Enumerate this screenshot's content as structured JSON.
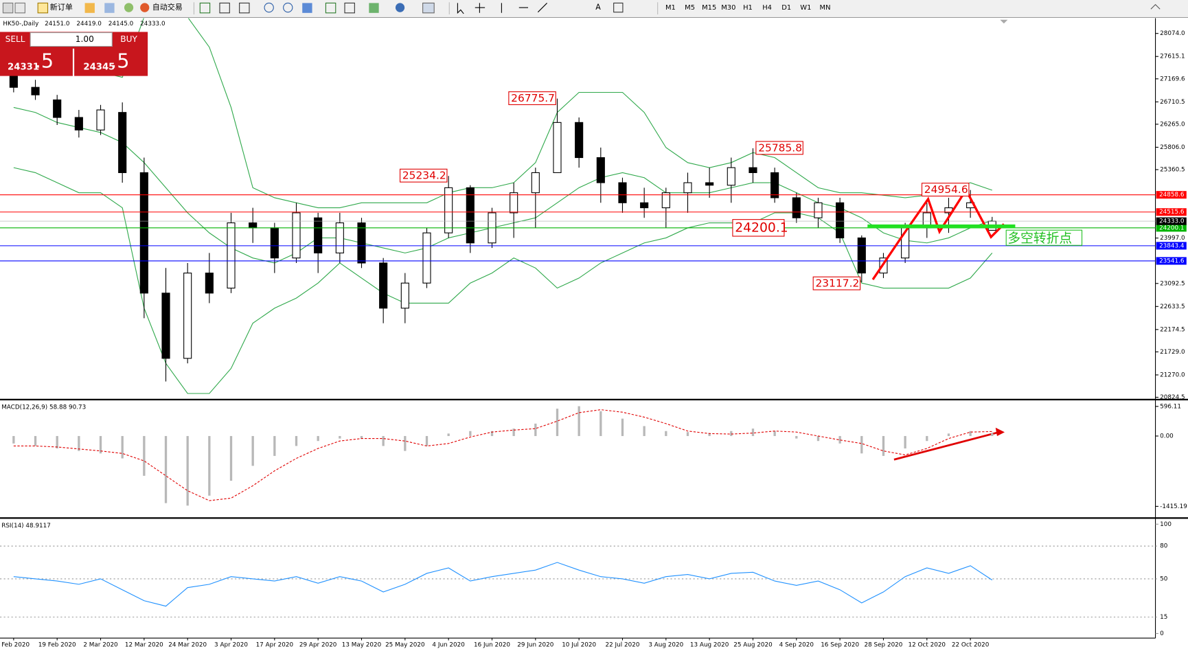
{
  "toolbar": {
    "new_order": "新订单",
    "auto_trading": "自动交易",
    "periods": [
      "M1",
      "M5",
      "M15",
      "M30",
      "H1",
      "H4",
      "D1",
      "W1",
      "MN"
    ]
  },
  "trade": {
    "sell": "SELL",
    "buy": "BUY",
    "lots": "1.00",
    "sell_big": "24331",
    "sell_small": ".5",
    "buy_big": "24345",
    "buy_small": ".5"
  },
  "chart_data": {
    "type": "candlestick",
    "title": "HK50-,Daily",
    "header_ohlc": [
      "24151.0",
      "24419.0",
      "24145.0",
      "24333.0"
    ],
    "categories": [
      "Feb 2020",
      null,
      "19 Feb 2020",
      null,
      "2 Mar 2020",
      null,
      "12 Mar 2020",
      null,
      "24 Mar 2020",
      null,
      "3 Apr 2020",
      null,
      "17 Apr 2020",
      null,
      "29 Apr 2020",
      null,
      "13 May 2020",
      null,
      "25 May 2020",
      null,
      "4 Jun 2020",
      null,
      "16 Jun 2020",
      null,
      "29 Jun 2020",
      null,
      "10 Jul 2020",
      null,
      "22 Jul 2020",
      null,
      "3 Aug 2020",
      null,
      "13 Aug 2020",
      null,
      "25 Aug 2020",
      null,
      "4 Sep 2020",
      null,
      "16 Sep 2020",
      null,
      "28 Sep 2020",
      null,
      "12 Oct 2020",
      null,
      "22 Oct 2020",
      null
    ],
    "open": [
      27300,
      27000,
      26750,
      26400,
      26150,
      26500,
      25300,
      22900,
      21600,
      23300,
      23000,
      24300,
      24200,
      23600,
      24400,
      23700,
      24300,
      23500,
      22600,
      23100,
      24100,
      25000,
      23900,
      24500,
      24900,
      25300,
      26300,
      25600,
      25100,
      24700,
      24600,
      24900,
      25100,
      25050,
      25400,
      25300,
      24800,
      24400,
      24700,
      24000,
      23300,
      23600,
      24200,
      24500,
      24600,
      24151
    ],
    "high": [
      27400,
      27150,
      26850,
      26550,
      26650,
      26700,
      25600,
      23400,
      23500,
      23700,
      24500,
      24600,
      24300,
      24700,
      24500,
      24500,
      24400,
      23600,
      23300,
      24200,
      25234.2,
      25050,
      24600,
      25100,
      25400,
      26775.7,
      26400,
      25800,
      25200,
      25000,
      25000,
      25300,
      25400,
      25600,
      25785.8,
      25400,
      24900,
      24800,
      24800,
      24050,
      23700,
      24300,
      24700,
      24800,
      24954.6,
      24419
    ],
    "low": [
      26900,
      26750,
      26250,
      26000,
      26050,
      25100,
      22400,
      21139,
      21500,
      22700,
      22900,
      23900,
      23300,
      23500,
      23300,
      23500,
      23400,
      22300,
      22300,
      23000,
      24000,
      23700,
      23800,
      24000,
      24200,
      25300,
      25400,
      24700,
      24500,
      24400,
      24200,
      24500,
      24800,
      24700,
      25100,
      24700,
      24300,
      24200,
      23900,
      23117.2,
      23200,
      23500,
      24000,
      24100,
      24400,
      24145
    ],
    "close": [
      27000,
      26850,
      26400,
      26150,
      26550,
      25300,
      22900,
      21600,
      23300,
      22900,
      24300,
      24200,
      23600,
      24500,
      23700,
      24300,
      23500,
      22600,
      23100,
      24100,
      25000,
      23900,
      24500,
      24900,
      25300,
      26300,
      25600,
      25100,
      24700,
      24600,
      24900,
      25100,
      25050,
      25400,
      25300,
      24800,
      24400,
      24700,
      24000,
      23300,
      23600,
      24200,
      24500,
      24600,
      24700,
      24333
    ],
    "bollinger": {
      "color": "#2ea84a",
      "upper": [
        27800,
        27700,
        27600,
        27500,
        27300,
        27200,
        28400,
        28500,
        28400,
        27800,
        26600,
        25000,
        24800,
        24700,
        24600,
        24600,
        24700,
        24700,
        24700,
        24700,
        24900,
        25000,
        25000,
        25100,
        25500,
        26500,
        26900,
        26900,
        26900,
        26500,
        25800,
        25500,
        25400,
        25500,
        25700,
        25600,
        25300,
        25000,
        24900,
        24900,
        24850,
        24800,
        24850,
        25000,
        25100,
        24950
      ],
      "middle": [
        26600,
        26500,
        26300,
        26200,
        26100,
        25900,
        25500,
        25000,
        24500,
        24100,
        23800,
        23600,
        23500,
        23700,
        24000,
        24000,
        23900,
        23800,
        23700,
        23800,
        24000,
        24100,
        24200,
        24300,
        24400,
        24700,
        25000,
        25200,
        25300,
        25200,
        24900,
        24900,
        24900,
        25000,
        25100,
        25100,
        24900,
        24700,
        24600,
        24400,
        24100,
        23950,
        23900,
        24000,
        24200,
        24350
      ],
      "lower": [
        25400,
        25300,
        25100,
        24900,
        24900,
        24600,
        22600,
        21500,
        20900,
        20900,
        21400,
        22300,
        22600,
        22800,
        23100,
        23500,
        23200,
        22900,
        22700,
        22700,
        22700,
        23100,
        23300,
        23600,
        23400,
        23000,
        23200,
        23500,
        23700,
        23900,
        24000,
        24200,
        24300,
        24300,
        24300,
        24500,
        24500,
        24400,
        24100,
        23100,
        23000,
        23000,
        23000,
        23000,
        23200,
        23700
      ]
    },
    "ylim": [
      20794,
      28377
    ],
    "yticks": [
      {
        "value": 28074,
        "label": "28074.0"
      },
      27615.1,
      27169.6,
      26710.5,
      {
        "value": 26265,
        "label": "26265.0"
      },
      {
        "value": 25806,
        "label": "25806.0"
      },
      25360.5,
      {
        "value": 23997,
        "label": "23997.0"
      },
      23092.5,
      22633.5,
      22174.5,
      {
        "value": 21729,
        "label": "21729.0"
      },
      {
        "value": 21270,
        "label": "21270.0"
      },
      20824.5
    ],
    "hlines": [
      {
        "value": 24858.6,
        "color": "#ff0000"
      },
      {
        "value": 24515.6,
        "color": "#ff0000"
      },
      {
        "value": 24200.1,
        "color": "#00b400"
      },
      {
        "value": 23843.4,
        "color": "#0000ff"
      },
      {
        "value": 23541.6,
        "color": "#0000ff"
      }
    ],
    "bid": {
      "value": 24333,
      "label": "24333.0"
    },
    "price_labels": [
      26775.7,
      25234.2,
      25785.8,
      24954.6,
      23117.2
    ],
    "annotation": "多空转折点",
    "macd": {
      "title": "MACD(12,26,9) 58.88 90.73",
      "ylim": [
        -1620,
        688
      ],
      "yticks": [
        596.11,
        {
          "value": 0,
          "label": "0.00"
        },
        -1415.19
      ],
      "histogram": [
        -150,
        -200,
        -250,
        -300,
        -350,
        -450,
        -800,
        -1350,
        -1400,
        -1200,
        -900,
        -600,
        -400,
        -200,
        -100,
        -50,
        -50,
        -200,
        -300,
        -200,
        50,
        100,
        100,
        150,
        250,
        550,
        600,
        500,
        350,
        200,
        100,
        80,
        60,
        100,
        150,
        100,
        -50,
        -100,
        -150,
        -350,
        -400,
        -250,
        -100,
        50,
        100,
        58.88
      ],
      "signal": [
        -200,
        -200,
        -220,
        -260,
        -300,
        -350,
        -500,
        -800,
        -1100,
        -1300,
        -1250,
        -1000,
        -700,
        -450,
        -250,
        -100,
        -50,
        -50,
        -100,
        -200,
        -150,
        -20,
        80,
        120,
        150,
        300,
        470,
        530,
        480,
        380,
        250,
        100,
        50,
        40,
        60,
        100,
        80,
        0,
        -80,
        -150,
        -300,
        -380,
        -250,
        -50,
        80,
        90.73
      ]
    },
    "rsi": {
      "title": "RSI(14) 48.9117",
      "ylim": [
        -4.2,
        104.2
      ],
      "yticks": [
        100,
        80,
        50,
        15,
        0
      ],
      "color": "#1e90ff",
      "values": [
        52,
        50,
        48,
        45,
        50,
        40,
        30,
        25,
        42,
        45,
        52,
        50,
        48,
        52,
        46,
        52,
        48,
        38,
        45,
        55,
        60,
        48,
        52,
        55,
        58,
        65,
        58,
        52,
        50,
        46,
        52,
        54,
        50,
        55,
        56,
        48,
        44,
        48,
        40,
        28,
        38,
        52,
        60,
        55,
        62,
        48.9117
      ]
    }
  }
}
